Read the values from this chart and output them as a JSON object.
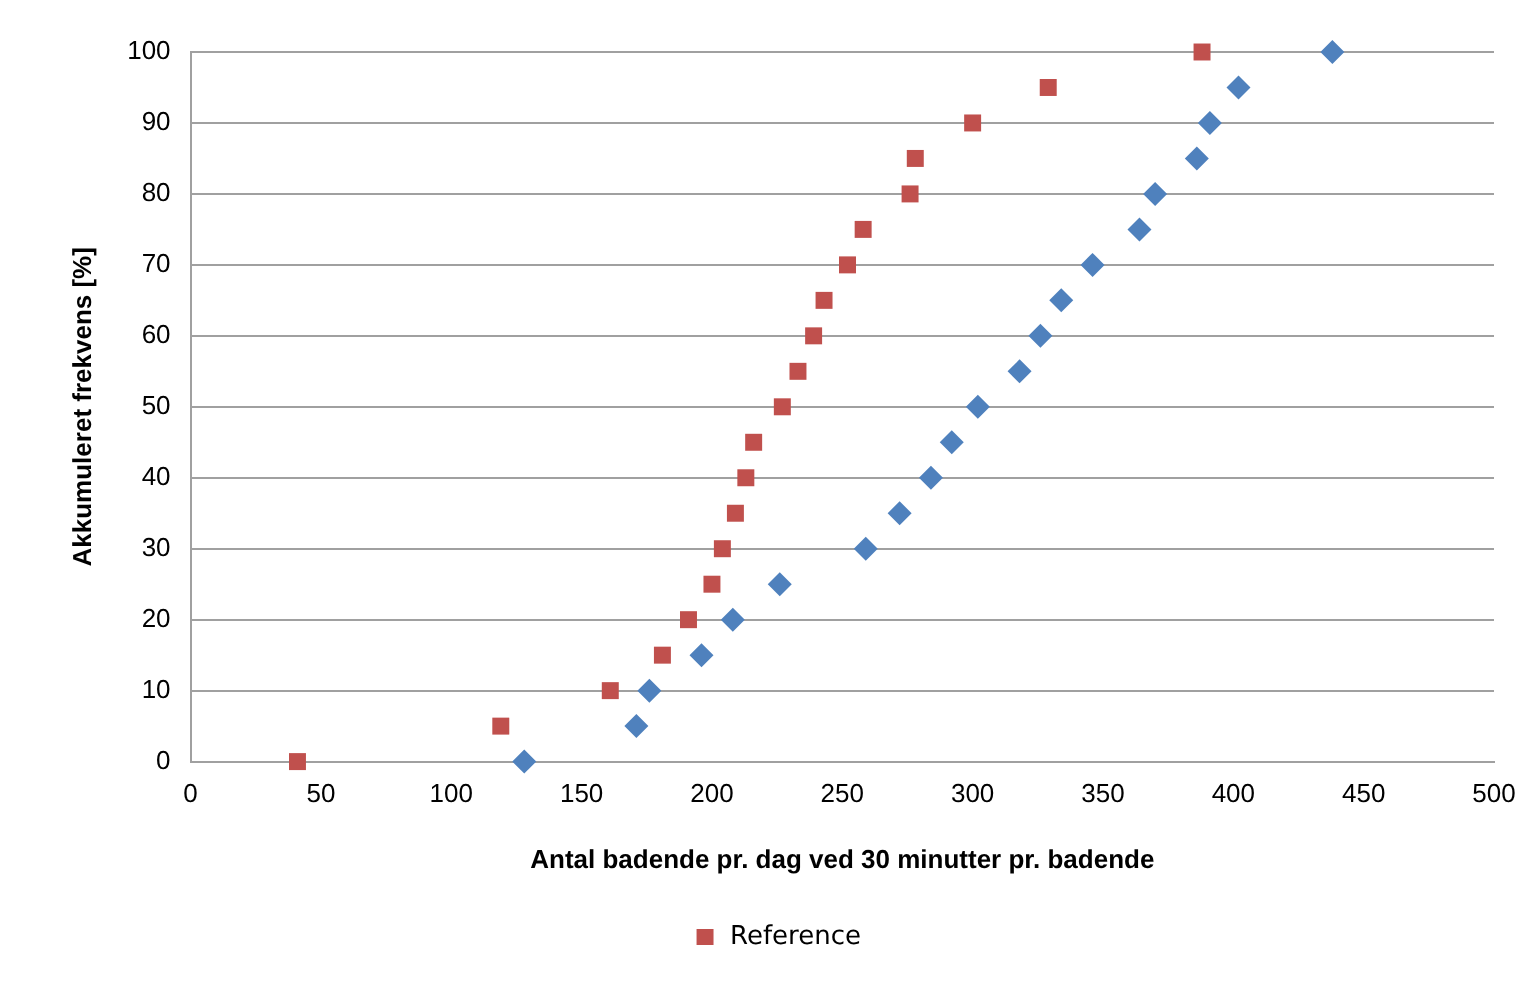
{
  "chart_data": {
    "type": "scatter",
    "xlabel": "Antal badende pr. dag ved 30 minutter pr. badende",
    "ylabel": "Akkumuleret frekvens [%]",
    "xlim": [
      0,
      500
    ],
    "xticks": [
      0,
      50,
      100,
      150,
      200,
      250,
      300,
      350,
      400,
      450,
      500
    ],
    "ylim": [
      0,
      100
    ],
    "yticks": [
      0,
      10,
      20,
      30,
      40,
      50,
      60,
      70,
      80,
      90,
      100
    ],
    "grid": "y",
    "legend": "bottom",
    "series": [
      {
        "color": "#4f81bd",
        "marker": "diamond",
        "x": [
          128,
          171,
          176,
          196,
          208,
          226,
          259,
          272,
          284,
          292,
          302,
          318,
          326,
          334,
          346,
          364,
          370,
          386,
          391,
          402,
          438
        ],
        "values": [
          0,
          5,
          10,
          15,
          20,
          25,
          30,
          35,
          40,
          45,
          50,
          55,
          60,
          65,
          70,
          75,
          80,
          85,
          90,
          95,
          100
        ]
      },
      {
        "name": "Reference",
        "color": "#c0504d",
        "marker": "square",
        "x": [
          41,
          119,
          161,
          181,
          191,
          200,
          204,
          209,
          213,
          216,
          227,
          233,
          239,
          243,
          252,
          258,
          276,
          278,
          300,
          329,
          388
        ],
        "values": [
          0,
          5,
          10,
          15,
          20,
          25,
          30,
          35,
          40,
          45,
          50,
          55,
          60,
          65,
          70,
          75,
          80,
          85,
          90,
          95,
          100
        ]
      }
    ]
  }
}
